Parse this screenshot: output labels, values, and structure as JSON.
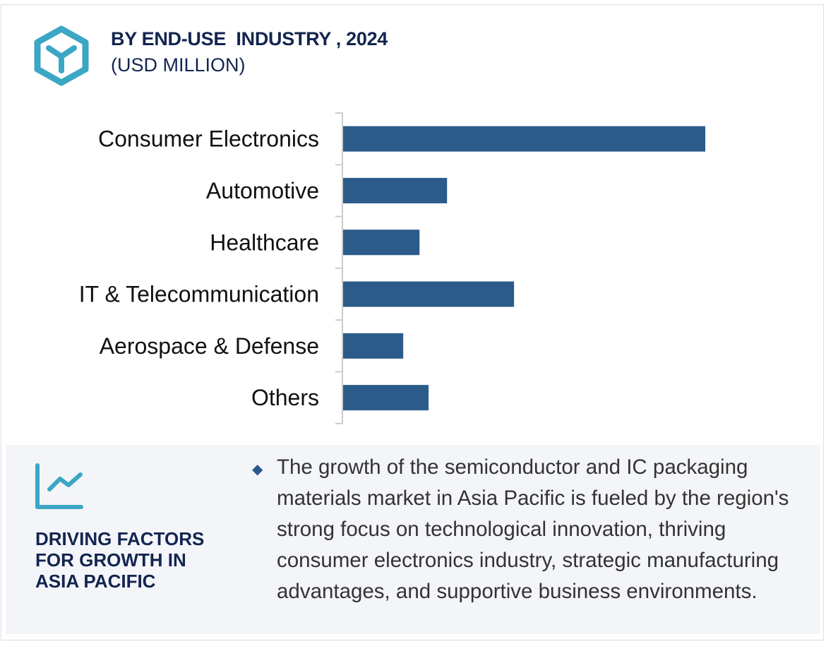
{
  "header": {
    "title": "BY END-USE  INDUSTRY , 2024",
    "subtitle": "(USD MILLION)",
    "icon": "hexagon-y-icon"
  },
  "chart_data": {
    "type": "bar",
    "orientation": "horizontal",
    "title": "BY END-USE  INDUSTRY , 2024",
    "ylabel": "(USD MILLION)",
    "categories": [
      "Consumer Electronics",
      "Automotive",
      "Healthcare",
      "IT & Telecommunication",
      "Aerospace & Defense",
      "Others"
    ],
    "values": [
      100,
      28.7,
      21.1,
      47.2,
      16.6,
      23.6
    ],
    "value_note": "relative bar lengths; no value axis shown",
    "xlim": [
      0,
      100
    ],
    "grid": false,
    "bar_color": "#2b5b8a"
  },
  "panel": {
    "icon": "trend-line-chart-icon",
    "title": "DRIVING FACTORS FOR GROWTH IN ASIA PACIFIC",
    "text": "The growth of the semiconductor and IC packaging materials market in Asia Pacific is fueled by the region's strong focus on technological innovation, thriving consumer electronics industry, strategic manufacturing advantages, and supportive business environments."
  },
  "colors": {
    "accent": "#3ba7c4",
    "navy": "#132550",
    "bar": "#2b5b8a",
    "panel_bg": "#f3f5f9"
  }
}
